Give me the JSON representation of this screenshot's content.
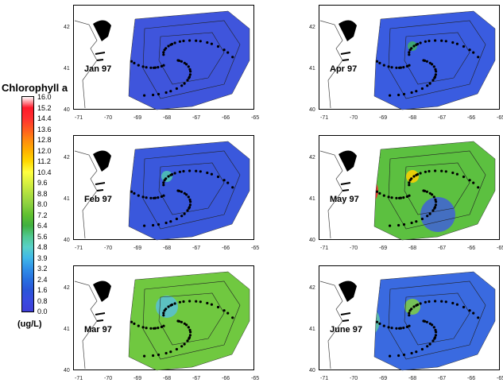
{
  "legend": {
    "title": "Chlorophyll a",
    "unit": "(ug/L)",
    "levels": [
      "16.0",
      "15.2",
      "14.4",
      "13.6",
      "12.8",
      "12.0",
      "11.2",
      "10.4",
      "9.6",
      "8.8",
      "8.0",
      "7.2",
      "6.4",
      "5.6",
      "4.8",
      "3.9",
      "3.2",
      "2.4",
      "1.6",
      "0.8",
      "0.0"
    ],
    "colors": [
      "#ffffff",
      "#ff1a2a",
      "#ff3030",
      "#ff5a20",
      "#ff8a10",
      "#ffb000",
      "#ffd800",
      "#ffff40",
      "#d8f040",
      "#b0e040",
      "#8cd040",
      "#60c030",
      "#40b040",
      "#50c890",
      "#58d0c8",
      "#40b8e8",
      "#3090e8",
      "#2870e0",
      "#2a55d8",
      "#3a4ae0",
      "#3f3fd8"
    ]
  },
  "axes": {
    "x_ticks": [
      "-71",
      "-70",
      "-69",
      "-68",
      "-67",
      "-66",
      "-65"
    ],
    "y_ticks": [
      "42",
      "41",
      "40"
    ]
  },
  "panels": [
    {
      "id": "jan",
      "label": "Jan 97",
      "fill": "#3f55dc",
      "accents": []
    },
    {
      "id": "apr",
      "label": "Apr 97",
      "fill": "#3a5ce0",
      "accents": [
        {
          "c": "#50c0e0",
          "r": 10
        },
        {
          "c": "#40b060",
          "r": 6
        }
      ]
    },
    {
      "id": "feb",
      "label": "Feb 97",
      "fill": "#3a58dc",
      "accents": [
        {
          "c": "#60d0d0",
          "r": 12
        },
        {
          "c": "#50c8b0",
          "r": 7
        }
      ]
    },
    {
      "id": "may",
      "label": "May 97",
      "fill": "#5cc040",
      "accents": [
        {
          "c": "#ff2030",
          "r": 20
        },
        {
          "c": "#ffd000",
          "r": 8
        },
        {
          "c": "#4060d8",
          "r": 22
        }
      ]
    },
    {
      "id": "mar",
      "label": "Mar 97",
      "fill": "#70c840",
      "accents": [
        {
          "c": "#3a55d8",
          "r": 16
        },
        {
          "c": "#58c0d8",
          "r": 14
        }
      ]
    },
    {
      "id": "jun",
      "label": "June 97",
      "fill": "#3a6ae0",
      "accents": [
        {
          "c": "#60c8a0",
          "r": 22
        },
        {
          "c": "#80d040",
          "r": 10
        }
      ]
    }
  ]
}
